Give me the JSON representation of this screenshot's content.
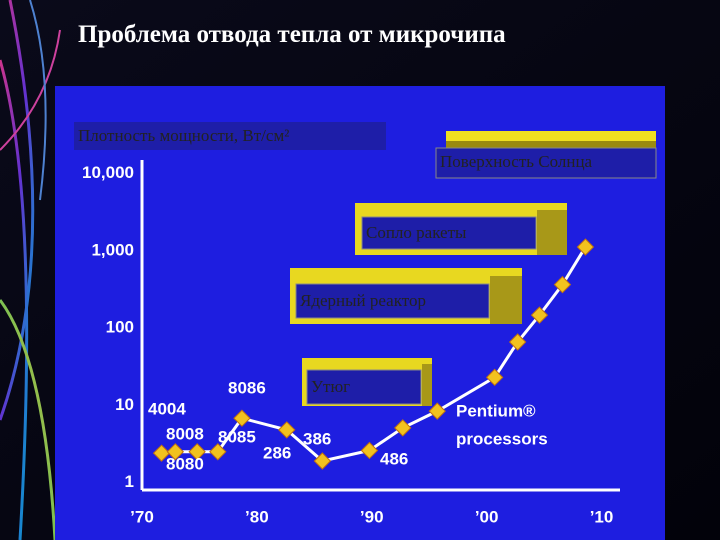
{
  "chart_data": {
    "type": "line",
    "title": "Проблема отвода тепла от микрочипа",
    "y_label": "Плотность мощности, Вт/см²",
    "x": [
      1971.7,
      1972.9,
      1974.8,
      1976.6,
      1978.7,
      1982.6,
      1985.7,
      1989.8,
      1992.7,
      1995.7,
      2000.7,
      2002.7,
      2004.6,
      2006.6,
      2008.6
    ],
    "values": [
      2.4,
      2.5,
      2.5,
      2.5,
      6.8,
      4.8,
      1.9,
      2.6,
      5.1,
      8.4,
      23,
      66,
      147,
      365,
      1120
    ],
    "point_labels": [
      "4004",
      "8008",
      "8080",
      "8085",
      "8086",
      "286",
      "386",
      "486",
      null,
      null,
      null,
      null,
      null,
      null,
      null
    ],
    "series_label": [
      "Pentium®",
      "processors"
    ],
    "color": "#f2c21e",
    "line_color": "#ffffff",
    "log_y": true,
    "xlim": [
      1970,
      2011
    ],
    "ylim": [
      0.8,
      15000
    ],
    "xticks": [
      {
        "value": 1970,
        "label": "’70"
      },
      {
        "value": 1980,
        "label": "’80"
      },
      {
        "value": 1990,
        "label": "’90"
      },
      {
        "value": 2000,
        "label": "’00"
      },
      {
        "value": 2010,
        "label": "’10"
      }
    ],
    "yticks": [
      1,
      10,
      100,
      {
        "value": 1000,
        "label": "1,000"
      },
      {
        "value": 10000,
        "label": "10,000"
      }
    ],
    "references": [
      "Поверхность Солнца",
      "Сопло ракеты",
      "Ядерный реактор",
      "Утюг"
    ]
  }
}
